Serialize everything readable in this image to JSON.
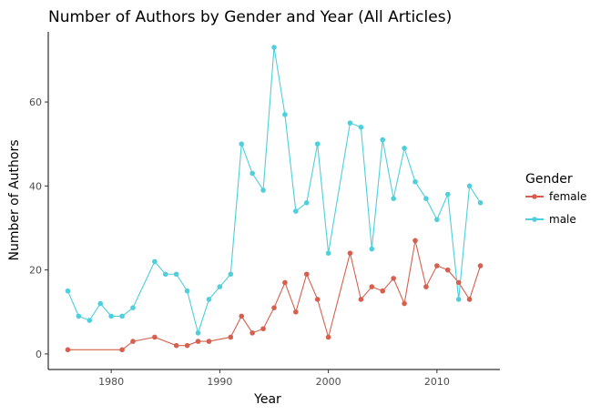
{
  "chart_data": {
    "type": "line",
    "title": "Number of Authors by Gender and Year (All Articles)",
    "xlabel": "Year",
    "ylabel": "Number of Authors",
    "xlim": [
      1974.2,
      2015.8
    ],
    "ylim": [
      -3.7,
      76.7
    ],
    "x_ticks": [
      1980,
      1990,
      2000,
      2010
    ],
    "y_ticks": [
      0,
      20,
      40,
      60
    ],
    "grid": false,
    "legend": {
      "title": "Gender",
      "position": "right"
    },
    "series": [
      {
        "name": "female",
        "color": "#d6604d",
        "points": [
          [
            1976,
            1
          ],
          [
            1981,
            1
          ],
          [
            1982,
            3
          ],
          [
            1984,
            4
          ],
          [
            1986,
            2
          ],
          [
            1987,
            2
          ],
          [
            1988,
            3
          ],
          [
            1989,
            3
          ],
          [
            1991,
            4
          ],
          [
            1992,
            9
          ],
          [
            1993,
            5
          ],
          [
            1994,
            6
          ],
          [
            1995,
            11
          ],
          [
            1996,
            17
          ],
          [
            1997,
            10
          ],
          [
            1998,
            19
          ],
          [
            1999,
            13
          ],
          [
            2000,
            4
          ],
          [
            2002,
            24
          ],
          [
            2003,
            13
          ],
          [
            2004,
            16
          ],
          [
            2005,
            15
          ],
          [
            2006,
            18
          ],
          [
            2007,
            12
          ],
          [
            2008,
            27
          ],
          [
            2009,
            16
          ],
          [
            2010,
            21
          ],
          [
            2011,
            20
          ],
          [
            2012,
            17
          ],
          [
            2013,
            13
          ],
          [
            2014,
            21
          ]
        ]
      },
      {
        "name": "male",
        "color": "#4ecfdb",
        "points": [
          [
            1976,
            15
          ],
          [
            1977,
            9
          ],
          [
            1978,
            8
          ],
          [
            1979,
            12
          ],
          [
            1980,
            9
          ],
          [
            1981,
            9
          ],
          [
            1982,
            11
          ],
          [
            1984,
            22
          ],
          [
            1985,
            19
          ],
          [
            1986,
            19
          ],
          [
            1987,
            15
          ],
          [
            1988,
            5
          ],
          [
            1989,
            13
          ],
          [
            1990,
            16
          ],
          [
            1991,
            19
          ],
          [
            1992,
            50
          ],
          [
            1993,
            43
          ],
          [
            1994,
            39
          ],
          [
            1995,
            73
          ],
          [
            1996,
            57
          ],
          [
            1997,
            34
          ],
          [
            1998,
            36
          ],
          [
            1999,
            50
          ],
          [
            2000,
            24
          ],
          [
            2002,
            55
          ],
          [
            2003,
            54
          ],
          [
            2004,
            25
          ],
          [
            2005,
            51
          ],
          [
            2006,
            37
          ],
          [
            2007,
            49
          ],
          [
            2008,
            41
          ],
          [
            2009,
            37
          ],
          [
            2010,
            32
          ],
          [
            2011,
            38
          ],
          [
            2012,
            13
          ],
          [
            2013,
            40
          ],
          [
            2014,
            36
          ]
        ]
      }
    ]
  }
}
